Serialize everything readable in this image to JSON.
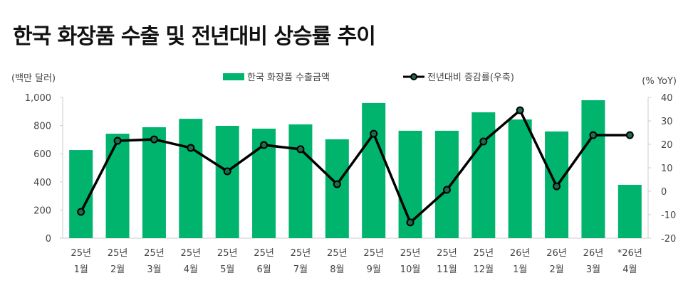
{
  "chart_data": {
    "type": "bar+line",
    "title": "한국 화장품 수출 및 전년대비 상승률 추이",
    "left_axis_label": "(백만 달러)",
    "right_axis_label": "(% YoY)",
    "categories": [
      [
        "25년",
        "1월"
      ],
      [
        "25년",
        "2월"
      ],
      [
        "25년",
        "3월"
      ],
      [
        "25년",
        "4월"
      ],
      [
        "25년",
        "5월"
      ],
      [
        "25년",
        "6월"
      ],
      [
        "25년",
        "7월"
      ],
      [
        "25년",
        "8월"
      ],
      [
        "25년",
        "9월"
      ],
      [
        "25년",
        "10월"
      ],
      [
        "25년",
        "11월"
      ],
      [
        "25년",
        "12월"
      ],
      [
        "26년",
        "1월"
      ],
      [
        "26년",
        "2월"
      ],
      [
        "26년",
        "3월"
      ],
      [
        "*26년",
        "4월"
      ]
    ],
    "series": [
      {
        "name": "한국 화장품 수출금액",
        "type": "bar",
        "axis": "left",
        "color": "#00b46e",
        "values": [
          626,
          742,
          788,
          848,
          798,
          778,
          808,
          702,
          960,
          763,
          763,
          894,
          843,
          758,
          980,
          379
        ]
      },
      {
        "name": "전년대비 증감률(우축)",
        "type": "line",
        "axis": "right",
        "color": "#000000",
        "marker_fill": "#1e6b4e",
        "values": [
          -8.8,
          21.5,
          22.1,
          18.5,
          8.5,
          19.7,
          17.9,
          3.0,
          24.5,
          -13.3,
          0.6,
          21.2,
          34.5,
          2.1,
          23.9,
          23.9
        ]
      }
    ],
    "left_ylim": [
      0,
      1000
    ],
    "left_ticks": [
      "0",
      "200",
      "400",
      "600",
      "800",
      "1,000"
    ],
    "right_ylim": [
      -20,
      40
    ],
    "right_ticks": [
      "-20",
      "-10",
      "0",
      "10",
      "20",
      "30",
      "40"
    ],
    "grid": false,
    "legend_position": "top-center"
  }
}
